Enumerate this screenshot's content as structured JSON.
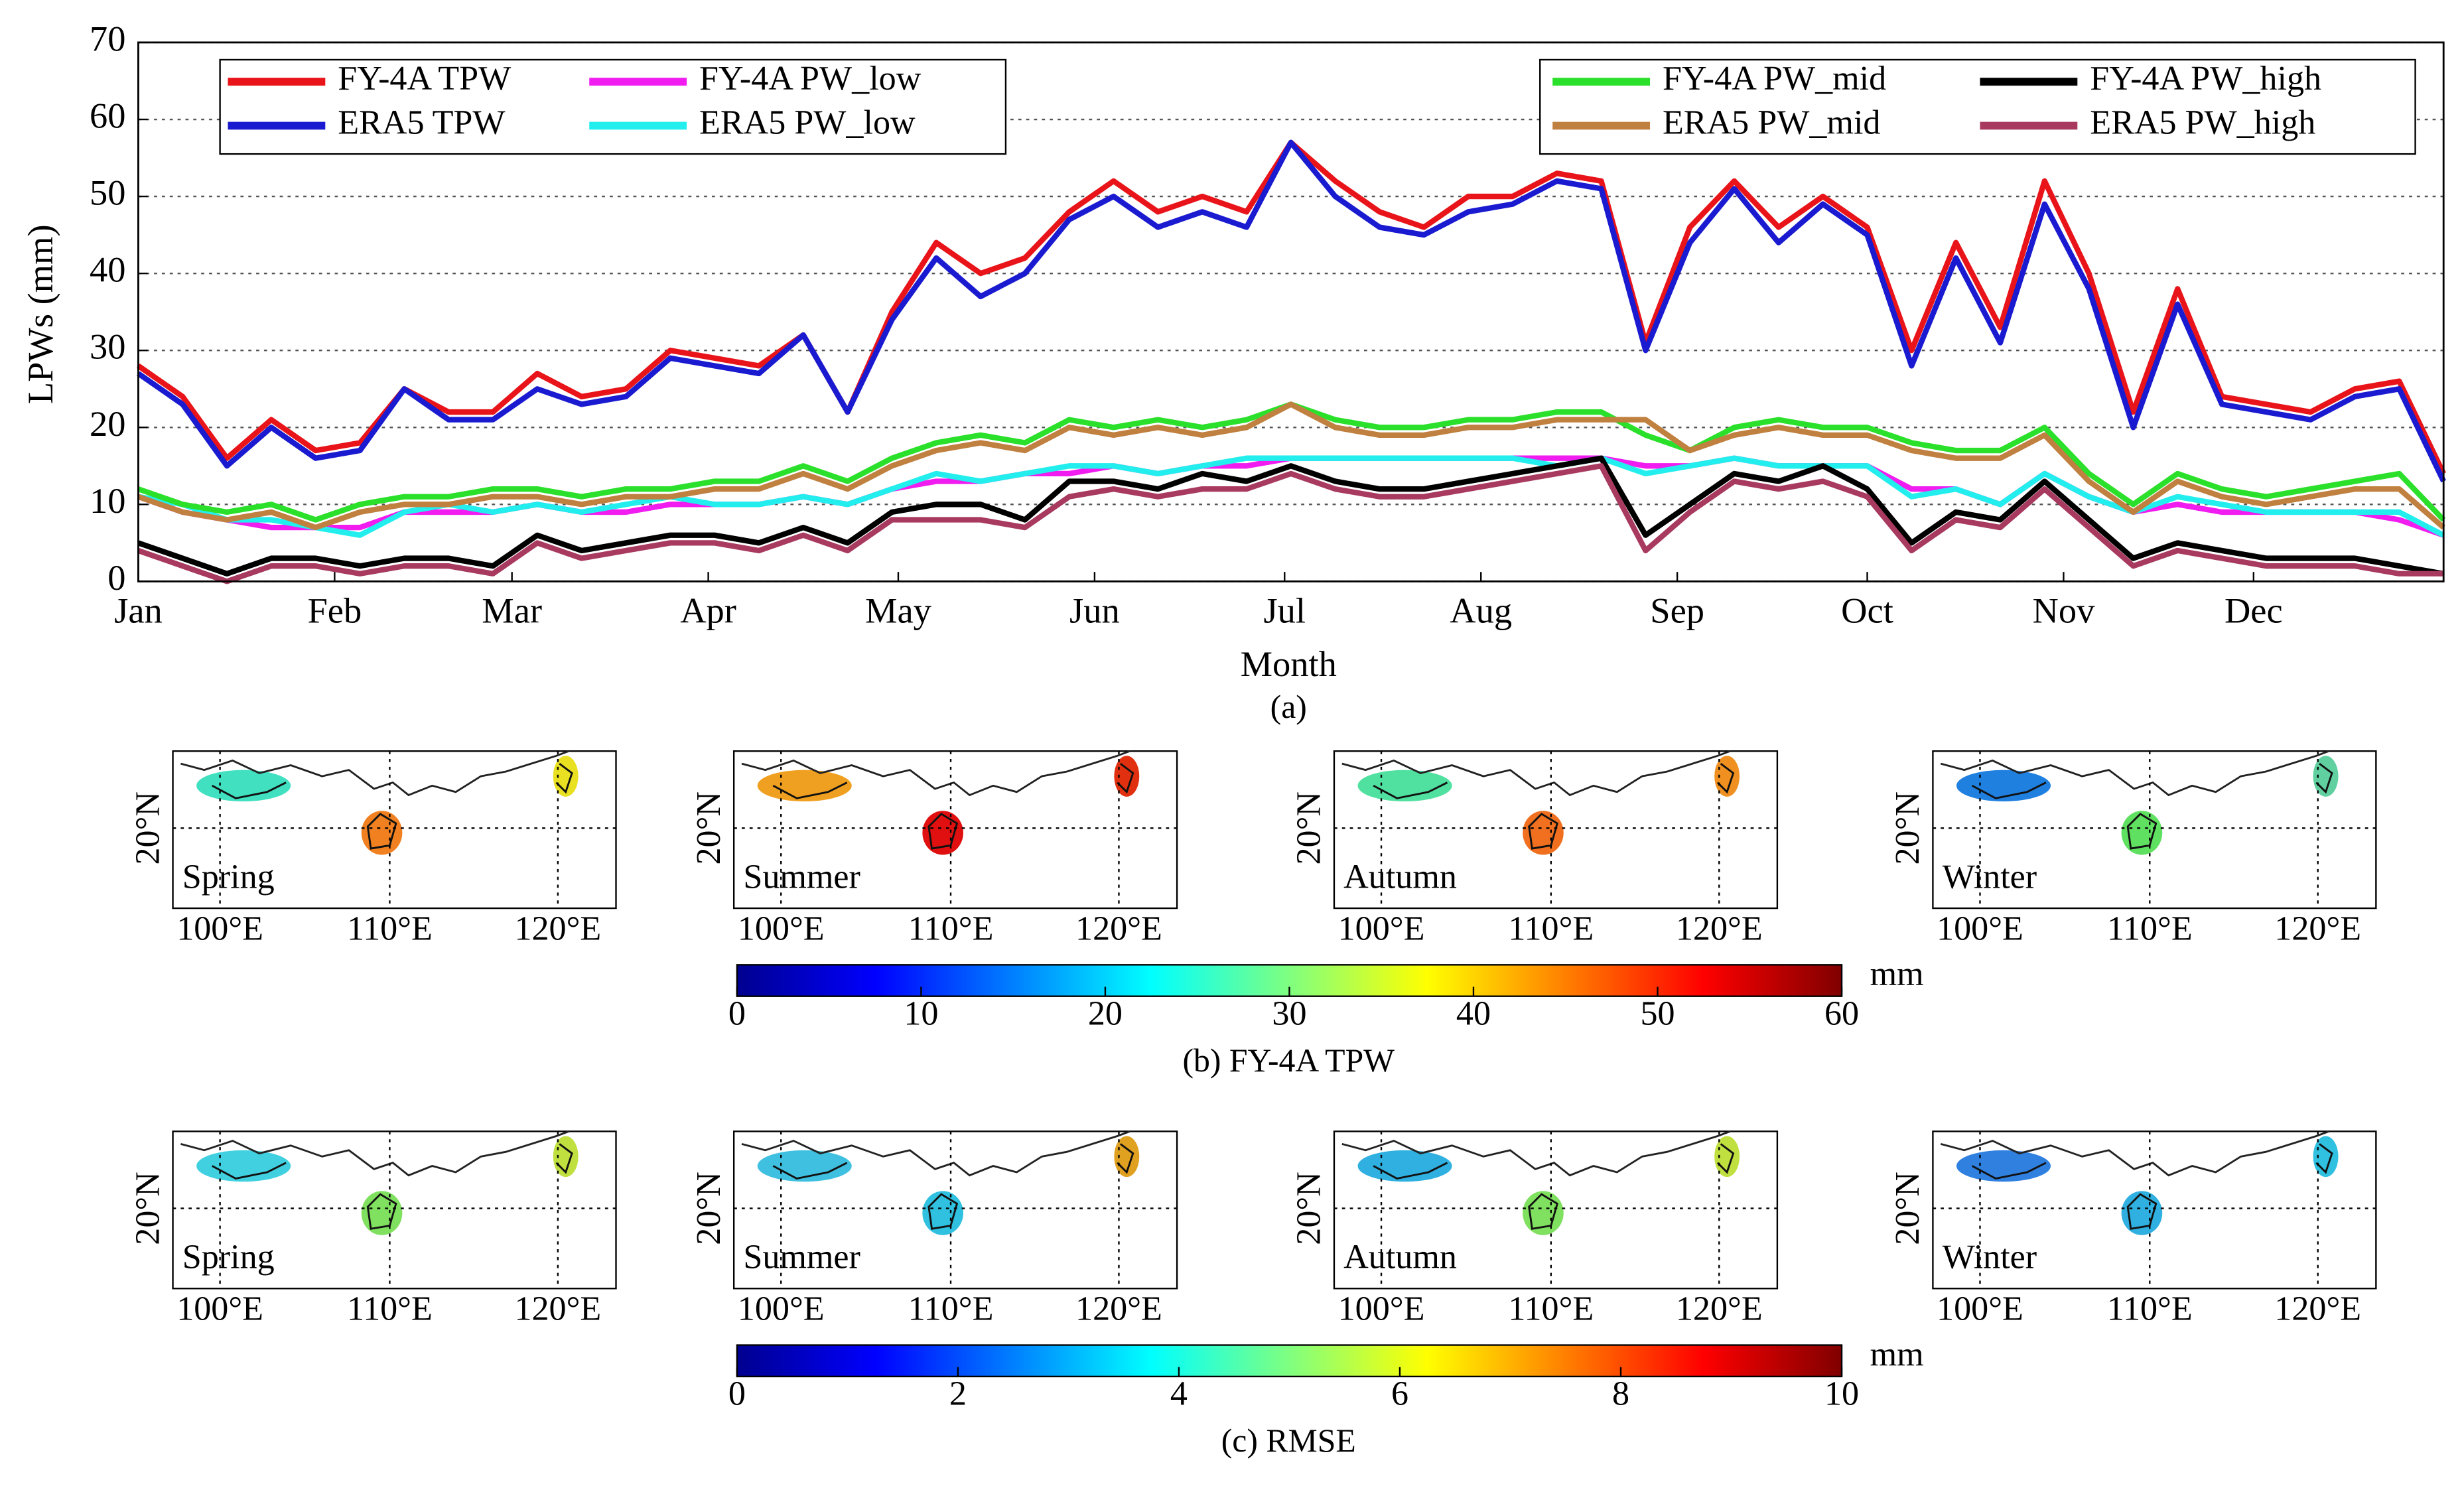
{
  "chart_data": {
    "type": "line",
    "ylabel": "LPWs (mm)",
    "xlabel": "Month",
    "panel_label": "(a)",
    "x": [
      1,
      8,
      15,
      22,
      29,
      36,
      43,
      50,
      57,
      64,
      71,
      78,
      85,
      92,
      99,
      106,
      113,
      120,
      127,
      134,
      141,
      148,
      155,
      162,
      169,
      176,
      183,
      190,
      197,
      204,
      211,
      218,
      225,
      232,
      239,
      246,
      253,
      260,
      267,
      274,
      281,
      288,
      295,
      302,
      309,
      316,
      323,
      330,
      337,
      344,
      351,
      358,
      365
    ],
    "xlim": [
      1,
      365
    ],
    "xticks": [
      {
        "value": 1,
        "label": "Jan"
      },
      {
        "value": 32,
        "label": "Feb"
      },
      {
        "value": 60,
        "label": "Mar"
      },
      {
        "value": 91,
        "label": "Apr"
      },
      {
        "value": 121,
        "label": "May"
      },
      {
        "value": 152,
        "label": "Jun"
      },
      {
        "value": 182,
        "label": "Jul"
      },
      {
        "value": 213,
        "label": "Aug"
      },
      {
        "value": 244,
        "label": "Sep"
      },
      {
        "value": 274,
        "label": "Oct"
      },
      {
        "value": 305,
        "label": "Nov"
      },
      {
        "value": 335,
        "label": "Dec"
      }
    ],
    "ylim": [
      0,
      70
    ],
    "yticks": [
      0,
      10,
      20,
      30,
      40,
      50,
      60,
      70
    ],
    "grid": true,
    "series": [
      {
        "name": "FY-4A TPW",
        "color": "#e8141a",
        "values": [
          28,
          24,
          16,
          21,
          17,
          18,
          25,
          22,
          22,
          27,
          24,
          25,
          30,
          29,
          28,
          32,
          22,
          35,
          44,
          40,
          42,
          48,
          52,
          48,
          50,
          48,
          57,
          52,
          48,
          46,
          50,
          50,
          53,
          52,
          31,
          46,
          52,
          46,
          50,
          46,
          30,
          44,
          33,
          52,
          40,
          22,
          38,
          24,
          23,
          22,
          25,
          26,
          14
        ]
      },
      {
        "name": "ERA5 TPW",
        "color": "#1a1ad0",
        "values": [
          27,
          23,
          15,
          20,
          16,
          17,
          25,
          21,
          21,
          25,
          23,
          24,
          29,
          28,
          27,
          32,
          22,
          34,
          42,
          37,
          40,
          47,
          50,
          46,
          48,
          46,
          57,
          50,
          46,
          45,
          48,
          49,
          52,
          51,
          30,
          44,
          51,
          44,
          49,
          45,
          28,
          42,
          31,
          49,
          38,
          20,
          36,
          23,
          22,
          21,
          24,
          25,
          13
        ]
      },
      {
        "name": "FY-4A PW_low",
        "color": "#f01cf0",
        "values": [
          11,
          9,
          8,
          7,
          7,
          7,
          9,
          9,
          9,
          10,
          9,
          9,
          10,
          10,
          10,
          11,
          10,
          12,
          13,
          13,
          14,
          14,
          15,
          14,
          15,
          15,
          16,
          16,
          16,
          16,
          16,
          16,
          16,
          16,
          15,
          15,
          16,
          15,
          15,
          15,
          12,
          12,
          10,
          14,
          11,
          9,
          10,
          9,
          9,
          9,
          9,
          8,
          6
        ]
      },
      {
        "name": "ERA5 PW_low",
        "color": "#22eeee",
        "values": [
          11,
          10,
          8,
          8,
          7,
          6,
          9,
          10,
          9,
          10,
          9,
          10,
          11,
          10,
          10,
          11,
          10,
          12,
          14,
          13,
          14,
          15,
          15,
          14,
          15,
          16,
          16,
          16,
          16,
          16,
          16,
          16,
          15,
          16,
          14,
          15,
          16,
          15,
          15,
          15,
          11,
          12,
          10,
          14,
          11,
          9,
          11,
          10,
          9,
          9,
          9,
          9,
          6
        ]
      },
      {
        "name": "FY-4A PW_mid",
        "color": "#2be02b",
        "values": [
          12,
          10,
          9,
          10,
          8,
          10,
          11,
          11,
          12,
          12,
          11,
          12,
          12,
          13,
          13,
          15,
          13,
          16,
          18,
          19,
          18,
          21,
          20,
          21,
          20,
          21,
          23,
          21,
          20,
          20,
          21,
          21,
          22,
          22,
          19,
          17,
          20,
          21,
          20,
          20,
          18,
          17,
          17,
          20,
          14,
          10,
          14,
          12,
          11,
          12,
          13,
          14,
          8
        ]
      },
      {
        "name": "ERA5 PW_mid",
        "color": "#c08040",
        "values": [
          11,
          9,
          8,
          9,
          7,
          9,
          10,
          10,
          11,
          11,
          10,
          11,
          11,
          12,
          12,
          14,
          12,
          15,
          17,
          18,
          17,
          20,
          19,
          20,
          19,
          20,
          23,
          20,
          19,
          19,
          20,
          20,
          21,
          21,
          21,
          17,
          19,
          20,
          19,
          19,
          17,
          16,
          16,
          19,
          13,
          9,
          13,
          11,
          10,
          11,
          12,
          12,
          7
        ]
      },
      {
        "name": "FY-4A PW_high",
        "color": "#000000",
        "values": [
          5,
          3,
          1,
          3,
          3,
          2,
          3,
          3,
          2,
          6,
          4,
          5,
          6,
          6,
          5,
          7,
          5,
          9,
          10,
          10,
          8,
          13,
          13,
          12,
          14,
          13,
          15,
          13,
          12,
          12,
          13,
          14,
          15,
          16,
          6,
          10,
          14,
          13,
          15,
          12,
          5,
          9,
          8,
          13,
          8,
          3,
          5,
          4,
          3,
          3,
          3,
          2,
          1
        ]
      },
      {
        "name": "ERA5 PW_high",
        "color": "#a83a60",
        "values": [
          4,
          2,
          0,
          2,
          2,
          1,
          2,
          2,
          1,
          5,
          3,
          4,
          5,
          5,
          4,
          6,
          4,
          8,
          8,
          8,
          7,
          11,
          12,
          11,
          12,
          12,
          14,
          12,
          11,
          11,
          12,
          13,
          14,
          15,
          4,
          9,
          13,
          12,
          13,
          11,
          4,
          8,
          7,
          12,
          7,
          2,
          4,
          3,
          2,
          2,
          2,
          1,
          1
        ]
      }
    ]
  },
  "maps": {
    "lat_tick": "20°N",
    "lon_ticks": [
      "100°E",
      "110°E",
      "120°E"
    ],
    "rows": [
      {
        "caption": "(b) FY-4A TPW",
        "panels": [
          "Spring",
          "Summer",
          "Autumn",
          "Winter"
        ],
        "colorbar": {
          "lim": [
            0,
            60
          ],
          "ticks": [
            0,
            10,
            20,
            30,
            40,
            50,
            60
          ],
          "unit": "mm"
        }
      },
      {
        "caption": "(c) RMSE",
        "panels": [
          "Spring",
          "Summer",
          "Autumn",
          "Winter"
        ],
        "colorbar": {
          "lim": [
            0,
            10
          ],
          "ticks": [
            0,
            2,
            4,
            6,
            8,
            10
          ],
          "unit": "mm"
        }
      }
    ]
  }
}
